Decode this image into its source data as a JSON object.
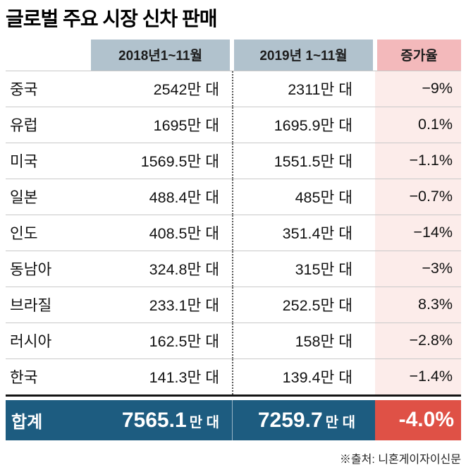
{
  "title": "글로벌 주요 시장 신차 판매",
  "source_note": "※출처: 니혼게이자이신문",
  "colors": {
    "header_blue": "#b1c2cd",
    "header_pink": "#f3b9bb",
    "growth_column_bg": "#fcecea",
    "total_row_bg": "#1d5c80",
    "total_growth_bg": "#df5146",
    "row_line": "#c9c9c9"
  },
  "chart_data": {
    "type": "table",
    "title": "글로벌 주요 시장 신차 판매",
    "columns": [
      "",
      "2018년1~11월",
      "2019년 1~11월",
      "증가율"
    ],
    "rows": [
      [
        "중국",
        "2542만 대",
        "2311만 대",
        "−9%"
      ],
      [
        "유럽",
        "1695만 대",
        "1695.9만 대",
        "0.1%"
      ],
      [
        "미국",
        "1569.5만 대",
        "1551.5만 대",
        "−1.1%"
      ],
      [
        "일본",
        "488.4만 대",
        "485만 대",
        "−0.7%"
      ],
      [
        "인도",
        "408.5만 대",
        "351.4만 대",
        "−14%"
      ],
      [
        "동남아",
        "324.8만 대",
        "315만 대",
        "−3%"
      ],
      [
        "브라질",
        "233.1만 대",
        "252.5만 대",
        "8.3%"
      ],
      [
        "러시아",
        "162.5만 대",
        "158만 대",
        "−2.8%"
      ],
      [
        "한국",
        "141.3만 대",
        "139.4만 대",
        "−1.4%"
      ]
    ],
    "footer": {
      "label": "합계",
      "v2018": "7565.1",
      "v2019": "7259.7",
      "unit": "만 대",
      "growth": "-4.0%"
    }
  }
}
